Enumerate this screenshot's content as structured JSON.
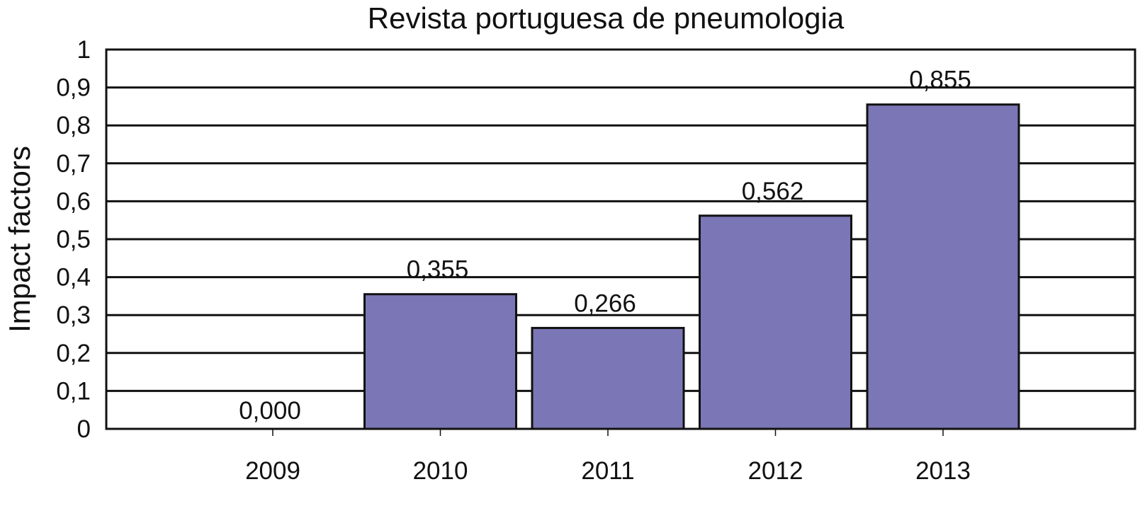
{
  "chart_data": {
    "type": "bar",
    "title": "Revista portuguesa de pneumologia",
    "xlabel": "",
    "ylabel": "Impact factors",
    "categories": [
      "2009",
      "2010",
      "2011",
      "2012",
      "2013"
    ],
    "values": [
      0.0,
      0.355,
      0.266,
      0.562,
      0.855
    ],
    "value_labels": [
      "0,000",
      "0,355",
      "0,266",
      "0,562",
      "0,855"
    ],
    "ylim": [
      0,
      1
    ],
    "yticks": [
      0,
      0.1,
      0.2,
      0.3,
      0.4,
      0.5,
      0.6,
      0.7,
      0.8,
      0.9,
      1
    ],
    "ytick_labels": [
      "0",
      "0,1",
      "0,2",
      "0,3",
      "0,4",
      "0,5",
      "0,6",
      "0,7",
      "0,8",
      "0,9",
      "1"
    ],
    "grid": true,
    "legend": "none",
    "colors": {
      "bar": "#7b76b5",
      "gridline": "#111111",
      "background": "#ffffff"
    }
  }
}
